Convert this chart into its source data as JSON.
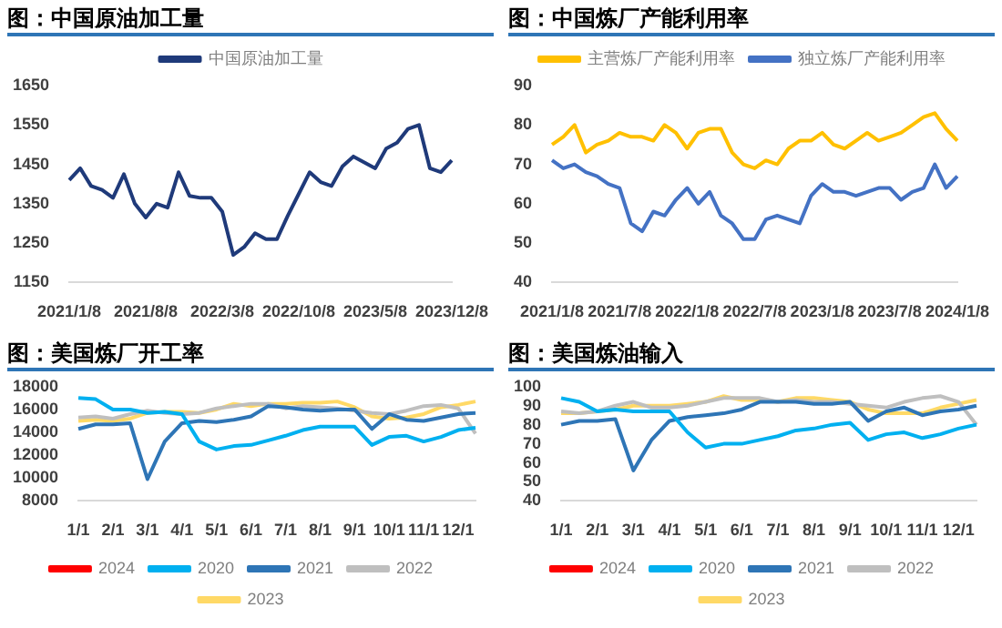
{
  "chart_data": [
    {
      "type": "line",
      "title": "图：中国原油加工量",
      "categories": [
        "2021/1/8",
        null,
        null,
        null,
        null,
        null,
        null,
        "2021/8/8",
        null,
        null,
        null,
        null,
        null,
        null,
        "2022/3/8",
        null,
        null,
        null,
        null,
        null,
        null,
        "2022/10/8",
        null,
        null,
        null,
        null,
        null,
        null,
        "2023/5/8",
        null,
        null,
        null,
        null,
        null,
        null,
        "2023/12/8"
      ],
      "series": [
        {
          "name": "中国原油加工量",
          "color": "#1f3a7a",
          "values": [
            1410,
            1440,
            1395,
            1385,
            1365,
            1425,
            1350,
            1315,
            1350,
            1340,
            1430,
            1370,
            1365,
            1365,
            1330,
            1220,
            1240,
            1275,
            1260,
            1260,
            1320,
            1375,
            1430,
            1405,
            1395,
            1445,
            1470,
            1455,
            1440,
            1490,
            1505,
            1540,
            1550,
            1440,
            1430,
            1460
          ]
        }
      ],
      "ylim": [
        1150,
        1650
      ],
      "yticks": [
        1150,
        1250,
        1350,
        1450,
        1550,
        1650
      ],
      "legend": "top",
      "marker": "none"
    },
    {
      "type": "line",
      "title": "图：中国炼厂产能利用率",
      "categories": [
        "2021/1/8",
        null,
        null,
        null,
        null,
        null,
        "2021/7/8",
        null,
        null,
        null,
        null,
        null,
        "2022/1/8",
        null,
        null,
        null,
        null,
        null,
        "2022/7/8",
        null,
        null,
        null,
        null,
        null,
        "2023/1/8",
        null,
        null,
        null,
        null,
        null,
        "2023/7/8",
        null,
        null,
        null,
        null,
        null,
        "2024/1/8"
      ],
      "series": [
        {
          "name": "主营炼厂产能利用率",
          "color": "#ffc000",
          "values": [
            75,
            77,
            80,
            73,
            75,
            76,
            78,
            77,
            77,
            76,
            80,
            78,
            74,
            78,
            79,
            79,
            73,
            70,
            69,
            71,
            70,
            74,
            76,
            76,
            78,
            75,
            74,
            76,
            78,
            76,
            77,
            78,
            80,
            82,
            83,
            79,
            76
          ]
        },
        {
          "name": "独立炼厂产能利用率",
          "color": "#4472c4",
          "values": [
            71,
            69,
            70,
            68,
            67,
            65,
            64,
            55,
            53,
            58,
            57,
            61,
            64,
            60,
            63,
            57,
            55,
            51,
            51,
            56,
            57,
            56,
            55,
            62,
            65,
            63,
            63,
            62,
            63,
            64,
            64,
            61,
            63,
            64,
            70,
            64,
            67
          ]
        }
      ],
      "ylim": [
        40,
        90
      ],
      "yticks": [
        40,
        50,
        60,
        70,
        80,
        90
      ],
      "legend": "top",
      "marker": "none"
    },
    {
      "type": "line",
      "title": "图：美国炼厂开工率",
      "categories": [
        "1/1",
        null,
        "2/1",
        null,
        "3/1",
        null,
        "4/1",
        null,
        "5/1",
        null,
        "6/1",
        null,
        "7/1",
        null,
        "8/1",
        null,
        "9/1",
        null,
        "10/1",
        null,
        "11/1",
        null,
        "12/1",
        null
      ],
      "series": [
        {
          "name": "2024",
          "color": "#ff0000",
          "values": [
            null,
            null,
            null,
            null,
            null,
            null,
            null,
            null,
            null,
            null,
            null,
            null,
            null,
            null,
            null,
            null,
            null,
            null,
            null,
            null,
            null,
            null,
            null,
            null
          ]
        },
        {
          "name": "2020",
          "color": "#00b0f0",
          "values": [
            17000,
            16900,
            16000,
            16000,
            15700,
            15800,
            15600,
            13200,
            12500,
            12800,
            12900,
            13300,
            13700,
            14200,
            14500,
            14500,
            14500,
            12900,
            13600,
            13700,
            13200,
            13600,
            14200,
            14400
          ]
        },
        {
          "name": "2021",
          "color": "#2e75b6",
          "values": [
            14300,
            14700,
            14700,
            14800,
            9900,
            13200,
            14800,
            15000,
            14900,
            15100,
            15400,
            16300,
            16200,
            16000,
            15900,
            16000,
            16000,
            14300,
            15600,
            15100,
            15000,
            15300,
            15600,
            15700
          ]
        },
        {
          "name": "2022",
          "color": "#bfbfbf",
          "values": [
            15300,
            15400,
            15200,
            15600,
            15900,
            15700,
            15600,
            15700,
            16100,
            16300,
            16500,
            16500,
            16100,
            16300,
            16200,
            16100,
            15900,
            15700,
            15600,
            15900,
            16300,
            16400,
            16100,
            13900
          ]
        },
        {
          "name": "2023",
          "color": "#ffd966",
          "values": [
            15000,
            15100,
            15000,
            15200,
            15700,
            15800,
            15800,
            15700,
            16000,
            16500,
            16300,
            16500,
            16500,
            16600,
            16600,
            16700,
            16200,
            15400,
            15200,
            15300,
            15600,
            16200,
            16400,
            16700
          ]
        }
      ],
      "ylim": [
        8000,
        18000
      ],
      "yticks": [
        8000,
        10000,
        12000,
        14000,
        16000,
        18000
      ],
      "legend": "bottom",
      "marker": "none"
    },
    {
      "type": "line",
      "title": "图：美国炼油输入",
      "categories": [
        "1/1",
        null,
        "2/1",
        null,
        "3/1",
        null,
        "4/1",
        null,
        "5/1",
        null,
        "6/1",
        null,
        "7/1",
        null,
        "8/1",
        null,
        "9/1",
        null,
        "10/1",
        null,
        "11/1",
        null,
        "12/1",
        null
      ],
      "series": [
        {
          "name": "2024",
          "color": "#ff0000",
          "values": [
            null,
            null,
            null,
            null,
            null,
            null,
            null,
            null,
            null,
            null,
            null,
            null,
            null,
            null,
            null,
            null,
            null,
            null,
            null,
            null,
            null,
            null,
            null,
            null
          ]
        },
        {
          "name": "2020",
          "color": "#00b0f0",
          "values": [
            94,
            92,
            87,
            88,
            87,
            87,
            87,
            76,
            68,
            70,
            70,
            72,
            74,
            77,
            78,
            80,
            81,
            72,
            75,
            76,
            73,
            75,
            78,
            80
          ]
        },
        {
          "name": "2021",
          "color": "#2e75b6",
          "values": [
            80,
            82,
            82,
            83,
            56,
            72,
            82,
            84,
            85,
            86,
            88,
            92,
            92,
            92,
            91,
            91,
            92,
            82,
            87,
            89,
            85,
            87,
            88,
            90
          ]
        },
        {
          "name": "2022",
          "color": "#bfbfbf",
          "values": [
            87,
            86,
            87,
            90,
            92,
            89,
            89,
            90,
            92,
            94,
            94,
            94,
            92,
            93,
            92,
            92,
            91,
            90,
            89,
            92,
            94,
            95,
            92,
            80
          ]
        },
        {
          "name": "2023",
          "color": "#ffd966",
          "values": [
            86,
            86,
            87,
            88,
            90,
            90,
            90,
            91,
            92,
            95,
            93,
            93,
            92,
            94,
            94,
            93,
            92,
            88,
            86,
            86,
            86,
            89,
            91,
            93
          ]
        }
      ],
      "ylim": [
        40,
        100
      ],
      "yticks": [
        40,
        50,
        60,
        70,
        80,
        90,
        100
      ],
      "legend": "bottom",
      "marker": "none"
    }
  ]
}
